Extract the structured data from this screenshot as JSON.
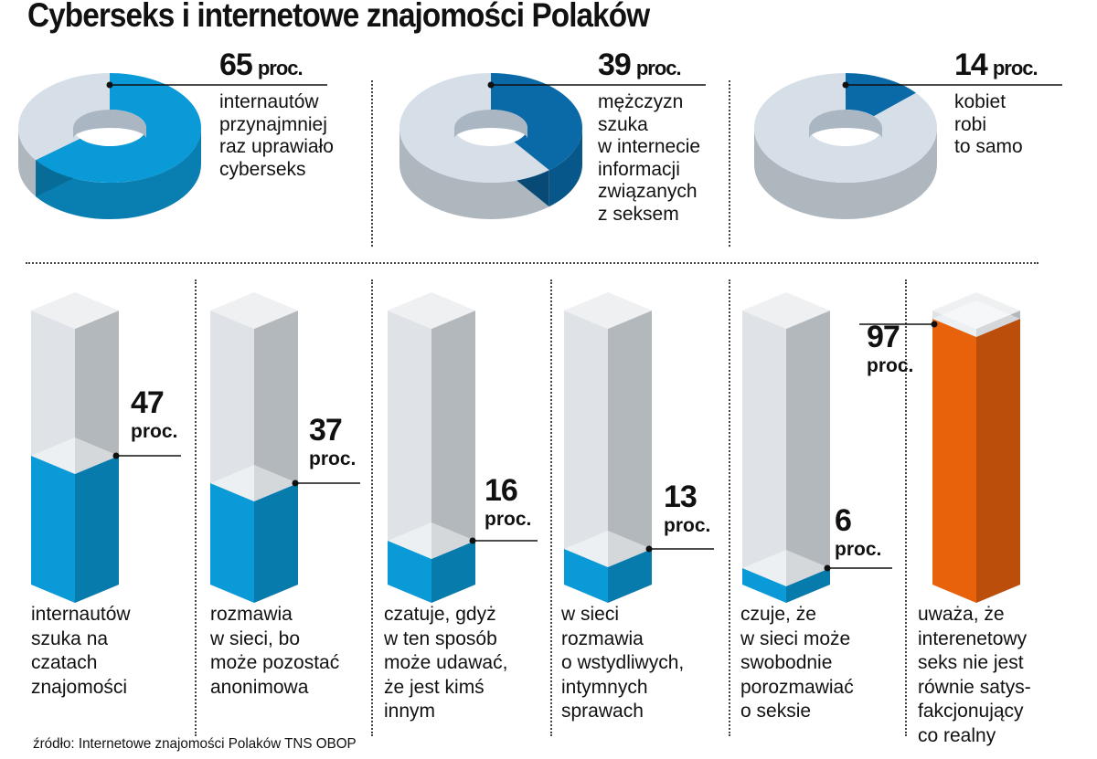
{
  "title": "Cyberseks i internetowe znajomości Polaków",
  "source": "źródło: Internetowe znajomości Polaków TNS OBOP",
  "colors": {
    "blue_light": "#0a9ad8",
    "blue_dark": "#0a6aa8",
    "grey": "#d6dfe8",
    "orange": "#e8620c"
  },
  "chart_data": [
    {
      "type": "pie",
      "unit": "proc.",
      "items": [
        {
          "value": 65,
          "value_label": "65",
          "unit": "proc.",
          "description": "internautów\nprzynajmniej\nraz uprawiało\ncyberseks",
          "color": "#0a9ad8"
        },
        {
          "value": 39,
          "value_label": "39",
          "unit": "proc.",
          "description": "mężczyzn\nszuka\nw internecie\ninformacji\nzwiązanych\nz seksem",
          "color": "#0a6aa8"
        },
        {
          "value": 14,
          "value_label": "14",
          "unit": "proc.",
          "description": "kobiet\nrobi\nto samo",
          "color": "#0a6aa8"
        }
      ]
    },
    {
      "type": "bar",
      "unit": "proc.",
      "ylim": [
        0,
        100
      ],
      "items": [
        {
          "value": 47,
          "value_label": "47",
          "unit": "proc.",
          "description": "internautów\nszuka na\nczatach\nznajomości",
          "color": "#0a9ad8"
        },
        {
          "value": 37,
          "value_label": "37",
          "unit": "proc.",
          "description": "rozmawia\nw sieci, bo\nmoże pozostać\nanonimowa",
          "color": "#0a9ad8"
        },
        {
          "value": 16,
          "value_label": "16",
          "unit": "proc.",
          "description": "czatuje, gdyż\nw ten sposób\nmoże udawać,\nże jest kimś\ninnym",
          "color": "#0a9ad8"
        },
        {
          "value": 13,
          "value_label": "13",
          "unit": "proc.",
          "description": "w sieci\nrozmawia\no wstydliwych,\nintymnych\nsprawach",
          "color": "#0a9ad8"
        },
        {
          "value": 6,
          "value_label": "6",
          "unit": "proc.",
          "description": "czuje, że\nw sieci może\nswobodnie\nporozmawiać\no seksie",
          "color": "#0a9ad8"
        },
        {
          "value": 97,
          "value_label": "97",
          "unit": "proc.",
          "description": "uważa, że\ninterenetowy\nseks nie jest\nrównie satys-\nfakcjonujący\nco realny",
          "color": "#e8620c"
        }
      ]
    }
  ]
}
